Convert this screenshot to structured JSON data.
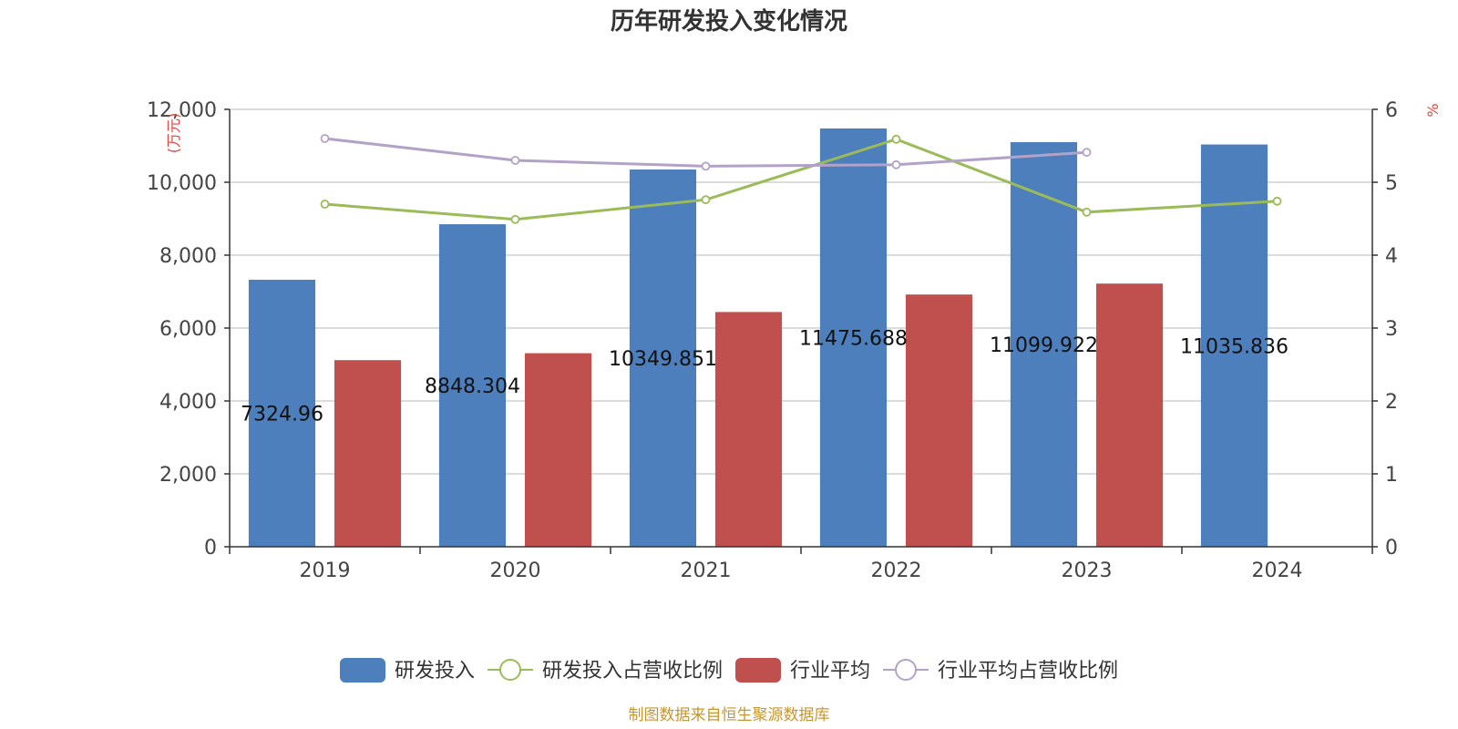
{
  "chart_data": {
    "type": "bar",
    "title": "历年研发投入变化情况",
    "categories": [
      "2019",
      "2020",
      "2021",
      "2022",
      "2023",
      "2024"
    ],
    "left_axis": {
      "unit": "(万元)",
      "ticks": [
        "0",
        "2,000",
        "4,000",
        "6,000",
        "8,000",
        "10,000",
        "12,000"
      ],
      "ylim": [
        0,
        12000
      ]
    },
    "right_axis": {
      "unit": "%",
      "ticks": [
        "0",
        "1",
        "2",
        "3",
        "4",
        "5",
        "6"
      ],
      "ylim": [
        0,
        6
      ]
    },
    "grid": true,
    "legend_position": "bottom",
    "series": [
      {
        "name": "研发投入",
        "type": "bar",
        "axis": "left",
        "color": "#4e7fbd",
        "values": [
          7324.96,
          8848.304,
          10349.851,
          11475.688,
          11099.922,
          11035.836
        ],
        "labels": [
          "7324.96",
          "8848.304",
          "10349.851",
          "11475.688",
          "11099.922",
          "11035.836"
        ]
      },
      {
        "name": "研发投入占营收比例",
        "type": "line",
        "axis": "right",
        "color": "#9bbb59",
        "values": [
          4.7,
          4.49,
          4.76,
          5.59,
          4.59,
          4.74
        ]
      },
      {
        "name": "行业平均",
        "type": "bar",
        "axis": "left",
        "color": "#c0504d",
        "values": [
          5120,
          5310,
          6440,
          6920,
          7220,
          null
        ]
      },
      {
        "name": "行业平均占营收比例",
        "type": "line",
        "axis": "right",
        "color": "#b3a2c7",
        "values": [
          5.6,
          5.3,
          5.22,
          5.24,
          5.41,
          null
        ]
      }
    ]
  },
  "footer": {
    "source": "制图数据来自恒生聚源数据库"
  }
}
